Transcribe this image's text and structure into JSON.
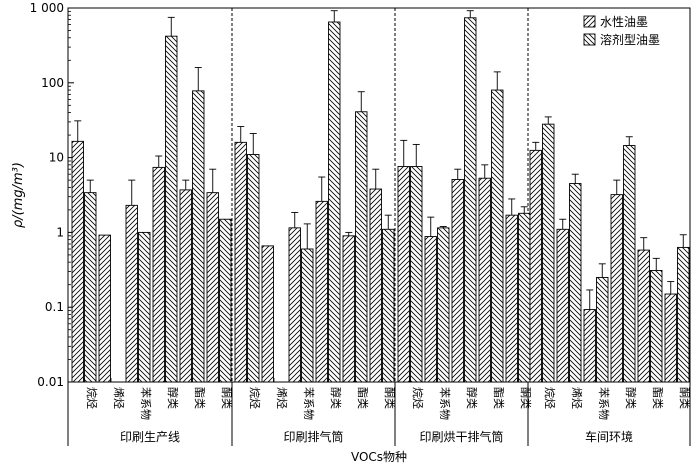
{
  "chart_data": {
    "type": "bar",
    "ylabel": "ρ/(mg/m³)",
    "xlabel": "VOCs物种",
    "yscale": "log",
    "ylim": [
      0.01,
      1000
    ],
    "yticks": [
      "0.01",
      "0.1",
      "1",
      "10",
      "100",
      "1 000"
    ],
    "grid": false,
    "legend_position": "top-right",
    "series": [
      {
        "name": "水性油墨",
        "pattern": "hatch-forward"
      },
      {
        "name": "溶剂型油墨",
        "pattern": "hatch-backward"
      }
    ],
    "groups": [
      {
        "label": "印刷生产线",
        "categories": [
          "烷烃",
          "烯烃",
          "苯系物",
          "醇类",
          "酯类",
          "酮类"
        ],
        "values": {
          "水性油墨": [
            16.5,
            0.92,
            2.3,
            7.4,
            3.7,
            3.4
          ],
          "溶剂型油墨": [
            3.4,
            null,
            1.0,
            420,
            78,
            1.5
          ]
        },
        "errors": {
          "水性油墨": [
            31,
            null,
            5.0,
            10.5,
            5.0,
            7.0
          ],
          "溶剂型油墨": [
            5.0,
            null,
            null,
            750,
            160,
            null
          ]
        }
      },
      {
        "label": "印刷排气筒",
        "categories": [
          "烷烃",
          "烯烃",
          "苯系物",
          "醇类",
          "酯类",
          "酮类"
        ],
        "values": {
          "水性油墨": [
            16,
            0.66,
            1.15,
            2.6,
            0.9,
            3.8
          ],
          "溶剂型油墨": [
            11,
            null,
            0.6,
            650,
            41,
            1.1
          ]
        },
        "errors": {
          "水性油墨": [
            26,
            null,
            1.85,
            5.5,
            1.0,
            7.0
          ],
          "溶剂型油墨": [
            21,
            null,
            1.3,
            920,
            76,
            1.7
          ]
        }
      },
      {
        "label": "印刷烘干排气筒",
        "categories": [
          "烷烃",
          "苯系物",
          "醇类",
          "酯类",
          "酮类"
        ],
        "values": {
          "水性油墨": [
            7.6,
            0.88,
            5.1,
            5.3,
            1.7
          ],
          "溶剂型油墨": [
            7.6,
            1.15,
            740,
            80,
            1.8
          ]
        },
        "errors": {
          "水性油墨": [
            17,
            1.6,
            7.0,
            8.0,
            2.8
          ],
          "溶剂型油墨": [
            15,
            1.2,
            920,
            140,
            2.2
          ]
        }
      },
      {
        "label": "车间环境",
        "categories": [
          "烷烃",
          "烯烃",
          "苯系物",
          "醇类",
          "酯类",
          "酮类"
        ],
        "values": {
          "水性油墨": [
            12.5,
            1.1,
            0.093,
            3.2,
            0.58,
            0.15
          ],
          "溶剂型油墨": [
            28,
            4.5,
            0.25,
            14.5,
            0.31,
            0.63
          ]
        },
        "errors": {
          "水性油墨": [
            16,
            1.5,
            0.17,
            5.0,
            0.85,
            0.22
          ],
          "溶剂型油墨": [
            35,
            6.0,
            0.38,
            19,
            0.45,
            0.93
          ]
        }
      }
    ]
  }
}
